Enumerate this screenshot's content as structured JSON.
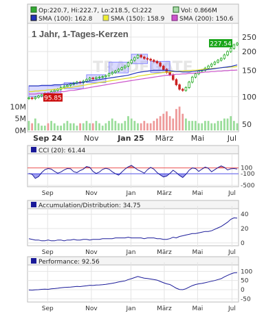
{
  "chart_data": [
    {
      "type": "candlestick",
      "title": "1 Jahr, 1-Tages-Kerzen",
      "watermark": "TRADEGATE",
      "legend": {
        "ohlc": "Op:220.7, Hi:222.7, Lo:218.5, Cl:222",
        "volume": "Vol: 0.866M",
        "sma100": "SMA (100): 162.8",
        "sma150": "SMA (150): 158.9",
        "sma200": "SMA (200): 150.6"
      },
      "colors": {
        "up": "#22aa22",
        "down": "#cc2222",
        "sma100": "#2233bb",
        "sma150": "#dddd22",
        "sma200": "#cc55cc",
        "box": "#8888ff",
        "volume_up": "#99dd99",
        "volume_down": "#ee9999"
      },
      "x_ticks": [
        "Sep 24",
        "Nov",
        "Jan 25",
        "März",
        "Mai",
        "Jul"
      ],
      "y_ticks": [
        100,
        150,
        200,
        250
      ],
      "y_scale": "log",
      "ylim": [
        62,
        290
      ],
      "volume_ticks": [
        "0M",
        "5M",
        "10M"
      ],
      "volume_ylim": [
        0,
        15
      ],
      "last_price_label": "227.54",
      "low_price_label": "95.85",
      "extra_tick": "50",
      "close": [
        98,
        97,
        99,
        101,
        103,
        105,
        104,
        108,
        110,
        112,
        115,
        117,
        119,
        121,
        123,
        125,
        124,
        127,
        130,
        133,
        132,
        134,
        135,
        136,
        138,
        142,
        145,
        148,
        152,
        156,
        160,
        168,
        175,
        182,
        189,
        184,
        180,
        178,
        175,
        172,
        168,
        160,
        152,
        145,
        140,
        130,
        120,
        112,
        110,
        115,
        125,
        135,
        142,
        148,
        150,
        155,
        160,
        165,
        170,
        175,
        180,
        190,
        200,
        210,
        222,
        227.5
      ],
      "volume": [
        4,
        3,
        5,
        3,
        2,
        2,
        3,
        4,
        3,
        2,
        2,
        3,
        4,
        3,
        3,
        2,
        3,
        3,
        4,
        3,
        3,
        4,
        3,
        2,
        3,
        4,
        5,
        4,
        3,
        3,
        4,
        6,
        5,
        4,
        3,
        3,
        4,
        3,
        3,
        4,
        5,
        6,
        7,
        8,
        6,
        5,
        9,
        10,
        7,
        5,
        4,
        4,
        4,
        3,
        3,
        4,
        4,
        3,
        3,
        4,
        4,
        5,
        5,
        6,
        4,
        3
      ],
      "sma100": [
        118,
        118,
        118,
        118,
        119,
        119,
        119,
        119,
        120,
        120,
        120,
        121,
        121,
        122,
        122,
        123,
        124,
        125,
        126,
        127,
        128,
        129,
        130,
        131,
        132,
        133,
        134,
        135,
        136,
        137,
        138,
        139,
        141,
        143,
        145,
        146,
        147,
        148,
        149,
        150,
        150,
        150,
        150,
        150,
        149,
        148,
        147,
        147,
        146,
        146,
        146,
        147,
        148,
        149,
        150,
        151,
        152,
        153,
        154,
        155,
        156,
        157,
        158,
        159,
        161,
        162.8
      ],
      "sma150": [
        108,
        108,
        109,
        109,
        110,
        110,
        111,
        111,
        112,
        112,
        113,
        114,
        115,
        115,
        116,
        117,
        118,
        119,
        120,
        121,
        122,
        123,
        124,
        125,
        126,
        127,
        128,
        129,
        130,
        131,
        132,
        133,
        134,
        135,
        137,
        138,
        139,
        140,
        141,
        142,
        143,
        144,
        145,
        146,
        146,
        147,
        147,
        148,
        148,
        149,
        149,
        150,
        150,
        151,
        152,
        153,
        153,
        154,
        155,
        155,
        156,
        157,
        157,
        158,
        158,
        158.9
      ],
      "sma200": [
        104,
        104,
        104,
        105,
        105,
        105,
        106,
        106,
        107,
        107,
        108,
        108,
        109,
        110,
        110,
        111,
        112,
        113,
        114,
        115,
        116,
        117,
        118,
        119,
        120,
        121,
        122,
        123,
        124,
        125,
        126,
        127,
        128,
        129,
        130,
        131,
        132,
        133,
        134,
        135,
        136,
        137,
        138,
        139,
        139,
        140,
        141,
        141,
        142,
        142,
        143,
        143,
        144,
        145,
        145,
        146,
        146,
        147,
        147,
        148,
        148,
        149,
        149,
        150,
        150,
        150.6
      ]
    },
    {
      "type": "line",
      "title": "CCI (20): 61.44",
      "x_ticks": [
        "Sep",
        "Nov",
        "Jan",
        "März",
        "Mai",
        "Jul"
      ],
      "y_ticks": [
        "100",
        "-100",
        "-500"
      ],
      "ylim": [
        -500,
        400
      ],
      "values": [
        -90,
        -120,
        -260,
        -200,
        -60,
        40,
        80,
        60,
        -20,
        -80,
        -40,
        30,
        80,
        70,
        -30,
        -60,
        10,
        60,
        150,
        120,
        -20,
        -90,
        -40,
        50,
        90,
        60,
        -30,
        -100,
        -150,
        -40,
        60,
        140,
        190,
        110,
        30,
        -20,
        -80,
        40,
        120,
        60,
        -60,
        -140,
        -210,
        -180,
        -90,
        20,
        -60,
        -160,
        -230,
        -120,
        20,
        100,
        80,
        -20,
        60,
        130,
        90,
        -30,
        40,
        110,
        170,
        120,
        30,
        70,
        80,
        61.44
      ]
    },
    {
      "type": "line",
      "title": "Accumulation/Distribution: 34.75",
      "x_ticks": [
        "Sep",
        "Nov",
        "Jan",
        "März",
        "Mai",
        "Jul"
      ],
      "y_ticks": [
        "40",
        "20",
        "0"
      ],
      "ylim": [
        -2,
        44
      ],
      "values": [
        6,
        5,
        4,
        4,
        3,
        3,
        4,
        3,
        3,
        4,
        4,
        3,
        4,
        4,
        5,
        4,
        4,
        5,
        5,
        4,
        5,
        5,
        5,
        6,
        6,
        6,
        6,
        7,
        7,
        7,
        7,
        8,
        7,
        7,
        7,
        7,
        6,
        7,
        7,
        7,
        6,
        6,
        5,
        5,
        6,
        8,
        7,
        9,
        10,
        11,
        12,
        13,
        13,
        14,
        15,
        16,
        16,
        17,
        19,
        21,
        23,
        26,
        29,
        33,
        35,
        34.75
      ]
    },
    {
      "type": "line",
      "title": "Performance: 92.56",
      "x_ticks": [
        "Sep",
        "Nov",
        "Jan",
        "März",
        "Mai",
        "Jul"
      ],
      "y_ticks": [
        "100",
        "50",
        "0",
        "-50"
      ],
      "ylim": [
        -60,
        120
      ],
      "values": [
        -2,
        -3,
        -1,
        0,
        2,
        3,
        2,
        5,
        6,
        8,
        10,
        12,
        13,
        14,
        16,
        18,
        17,
        19,
        21,
        24,
        23,
        25,
        26,
        27,
        29,
        32,
        35,
        38,
        42,
        45,
        48,
        55,
        60,
        66,
        72,
        67,
        63,
        61,
        58,
        55,
        52,
        45,
        38,
        32,
        28,
        18,
        8,
        1,
        0,
        5,
        14,
        22,
        28,
        32,
        34,
        38,
        42,
        46,
        50,
        55,
        60,
        70,
        78,
        86,
        92,
        92.56
      ]
    }
  ]
}
